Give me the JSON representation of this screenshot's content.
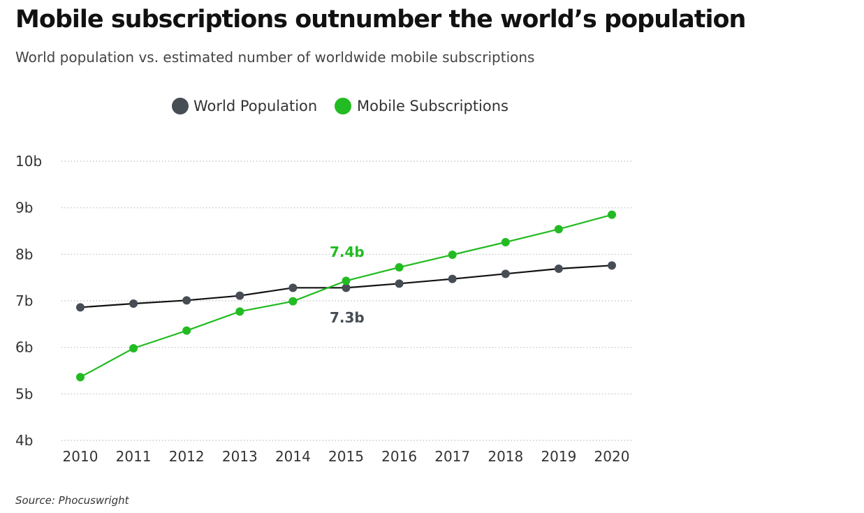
{
  "header": {
    "title": "Mobile subscriptions outnumber the world’s population",
    "subtitle": "World population vs. estimated number of worldwide mobile subscriptions"
  },
  "footer": {
    "source": "Source: Phocuswright"
  },
  "colors": {
    "population": "#474d55",
    "subscriptions": "#22bb22",
    "population_line": "#111111",
    "grid": "#bdbdbd"
  },
  "chart_data": {
    "type": "line",
    "title": "",
    "xlabel": "",
    "ylabel": "",
    "x": [
      "2010",
      "2011",
      "2012",
      "2013",
      "2014",
      "2015",
      "2016",
      "2017",
      "2018",
      "2019",
      "2020"
    ],
    "ylim": [
      4,
      10
    ],
    "y_ticks": [
      {
        "value": 10,
        "label": "10b"
      },
      {
        "value": 9,
        "label": "9b"
      },
      {
        "value": 8,
        "label": "8b"
      },
      {
        "value": 7,
        "label": "7b"
      },
      {
        "value": 6,
        "label": "6b"
      },
      {
        "value": 5,
        "label": "5b"
      },
      {
        "value": 4,
        "label": "4b"
      }
    ],
    "grid": true,
    "legend_position": "top-center",
    "series": [
      {
        "name": "World Population",
        "key": "population",
        "values": [
          6.86,
          6.94,
          7.01,
          7.11,
          7.28,
          7.28,
          7.37,
          7.47,
          7.58,
          7.69,
          7.76
        ]
      },
      {
        "name": "Mobile Subscriptions",
        "key": "subscriptions",
        "values": [
          5.36,
          5.98,
          6.36,
          6.77,
          6.99,
          7.43,
          7.72,
          7.99,
          8.26,
          8.54,
          8.85
        ]
      }
    ],
    "annotations": [
      {
        "text": "7.4b",
        "series": "subscriptions"
      },
      {
        "text": "7.3b",
        "series": "population"
      }
    ]
  }
}
